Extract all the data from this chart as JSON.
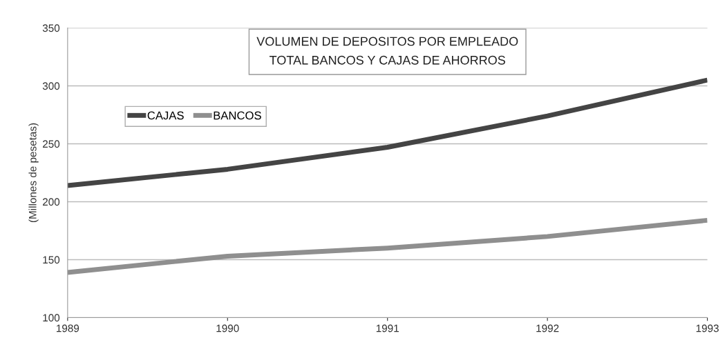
{
  "chart_data": {
    "type": "line",
    "title": "VOLUMEN DE DEPOSITOS POR EMPLEADO",
    "subtitle": "TOTAL BANCOS Y CAJAS DE AHORROS",
    "ylabel": "(Millones de pesetas)",
    "x": [
      1989,
      1990,
      1991,
      1992,
      1993
    ],
    "series": [
      {
        "name": "CAJAS",
        "color": "#444444",
        "values": [
          214,
          228,
          247,
          274,
          305
        ]
      },
      {
        "name": "BANCOS",
        "color": "#8f8f8f",
        "values": [
          139,
          153,
          160,
          170,
          184
        ]
      }
    ],
    "xlim": [
      1989,
      1993
    ],
    "xticks": [
      1989,
      1990,
      1991,
      1992,
      1993
    ],
    "ylim": [
      100,
      350
    ],
    "yticks": [
      100,
      150,
      200,
      250,
      300,
      350
    ],
    "grid": "y",
    "legend": "top left",
    "marker": "none",
    "line_style": "solid"
  }
}
